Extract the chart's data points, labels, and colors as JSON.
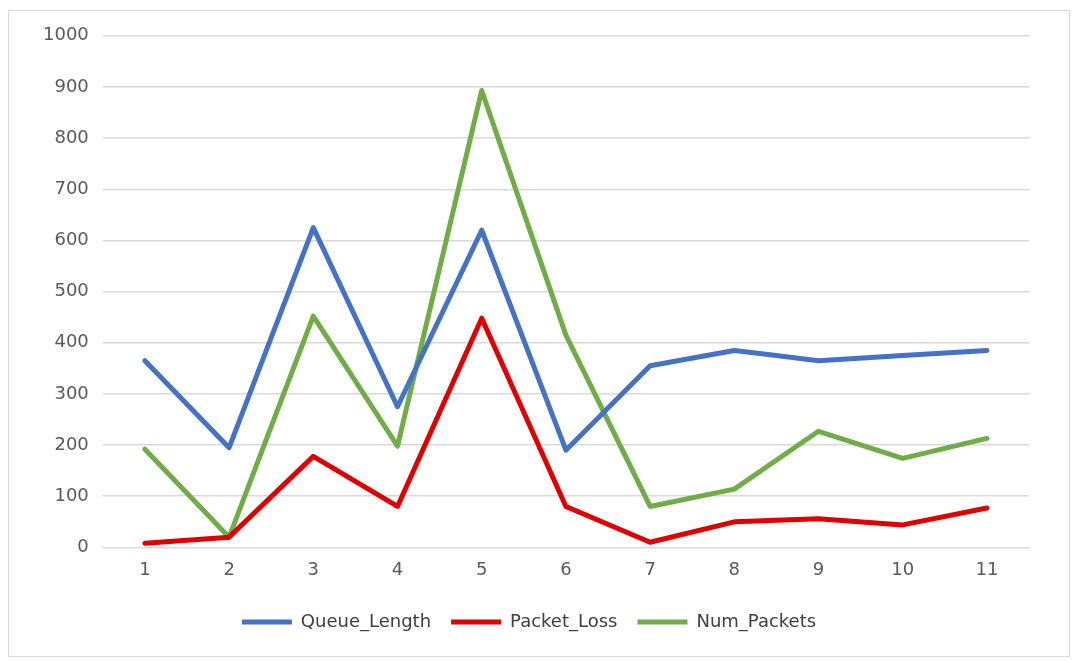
{
  "chart_data": {
    "type": "line",
    "categories": [
      "1",
      "2",
      "3",
      "4",
      "5",
      "6",
      "7",
      "8",
      "9",
      "10",
      "11"
    ],
    "series": [
      {
        "name": "Queue_Length",
        "color": "#4472c4",
        "values": [
          365,
          195,
          625,
          275,
          620,
          190,
          355,
          385,
          365,
          375,
          385
        ]
      },
      {
        "name": "Packet_Loss",
        "color": "#e00000",
        "values": [
          8,
          20,
          178,
          80,
          448,
          80,
          10,
          50,
          56,
          44,
          77
        ]
      },
      {
        "name": "Num_Packets",
        "color": "#70ad47",
        "values": [
          192,
          20,
          452,
          198,
          893,
          415,
          80,
          114,
          227,
          174,
          213
        ]
      }
    ],
    "ylim": [
      0,
      1000
    ],
    "yticks": [
      0,
      100,
      200,
      300,
      400,
      500,
      600,
      700,
      800,
      900,
      1000
    ],
    "grid": "y",
    "legend": "bottom",
    "marker": "none",
    "line_style": "solid"
  }
}
